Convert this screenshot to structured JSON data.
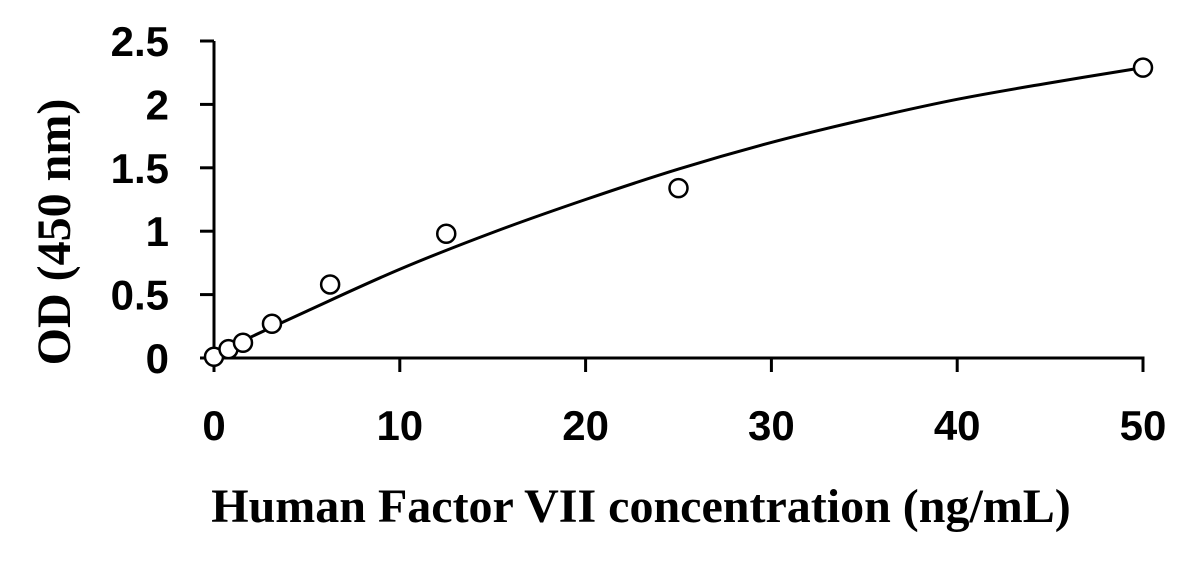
{
  "chart_data": {
    "type": "scatter",
    "title": "",
    "xlabel": "Human Factor VII concentration (ng/mL)",
    "ylabel": "OD (450 nm)",
    "xlim": [
      0,
      50
    ],
    "ylim": [
      0,
      2.5
    ],
    "x_ticks": [
      "0",
      "10",
      "20",
      "30",
      "40",
      "50"
    ],
    "y_ticks": [
      "0",
      "0.5",
      "1",
      "1.5",
      "2",
      "2.5"
    ],
    "grid": false,
    "legend": "none",
    "series": [
      {
        "points": [
          {
            "x": 0,
            "y": 0.01
          },
          {
            "x": 0.78,
            "y": 0.07
          },
          {
            "x": 1.56,
            "y": 0.12
          },
          {
            "x": 3.12,
            "y": 0.27
          },
          {
            "x": 6.25,
            "y": 0.58
          },
          {
            "x": 12.5,
            "y": 0.98
          },
          {
            "x": 25,
            "y": 1.34
          },
          {
            "x": 50,
            "y": 2.29
          }
        ]
      }
    ],
    "fit_curve": {
      "type": "smooth",
      "points": [
        {
          "x": 0,
          "y": 0.03
        },
        {
          "x": 5,
          "y": 0.37
        },
        {
          "x": 10,
          "y": 0.7
        },
        {
          "x": 15,
          "y": 0.99
        },
        {
          "x": 20,
          "y": 1.25
        },
        {
          "x": 25,
          "y": 1.49
        },
        {
          "x": 30,
          "y": 1.7
        },
        {
          "x": 35,
          "y": 1.88
        },
        {
          "x": 40,
          "y": 2.04
        },
        {
          "x": 45,
          "y": 2.17
        },
        {
          "x": 50,
          "y": 2.29
        }
      ]
    }
  }
}
